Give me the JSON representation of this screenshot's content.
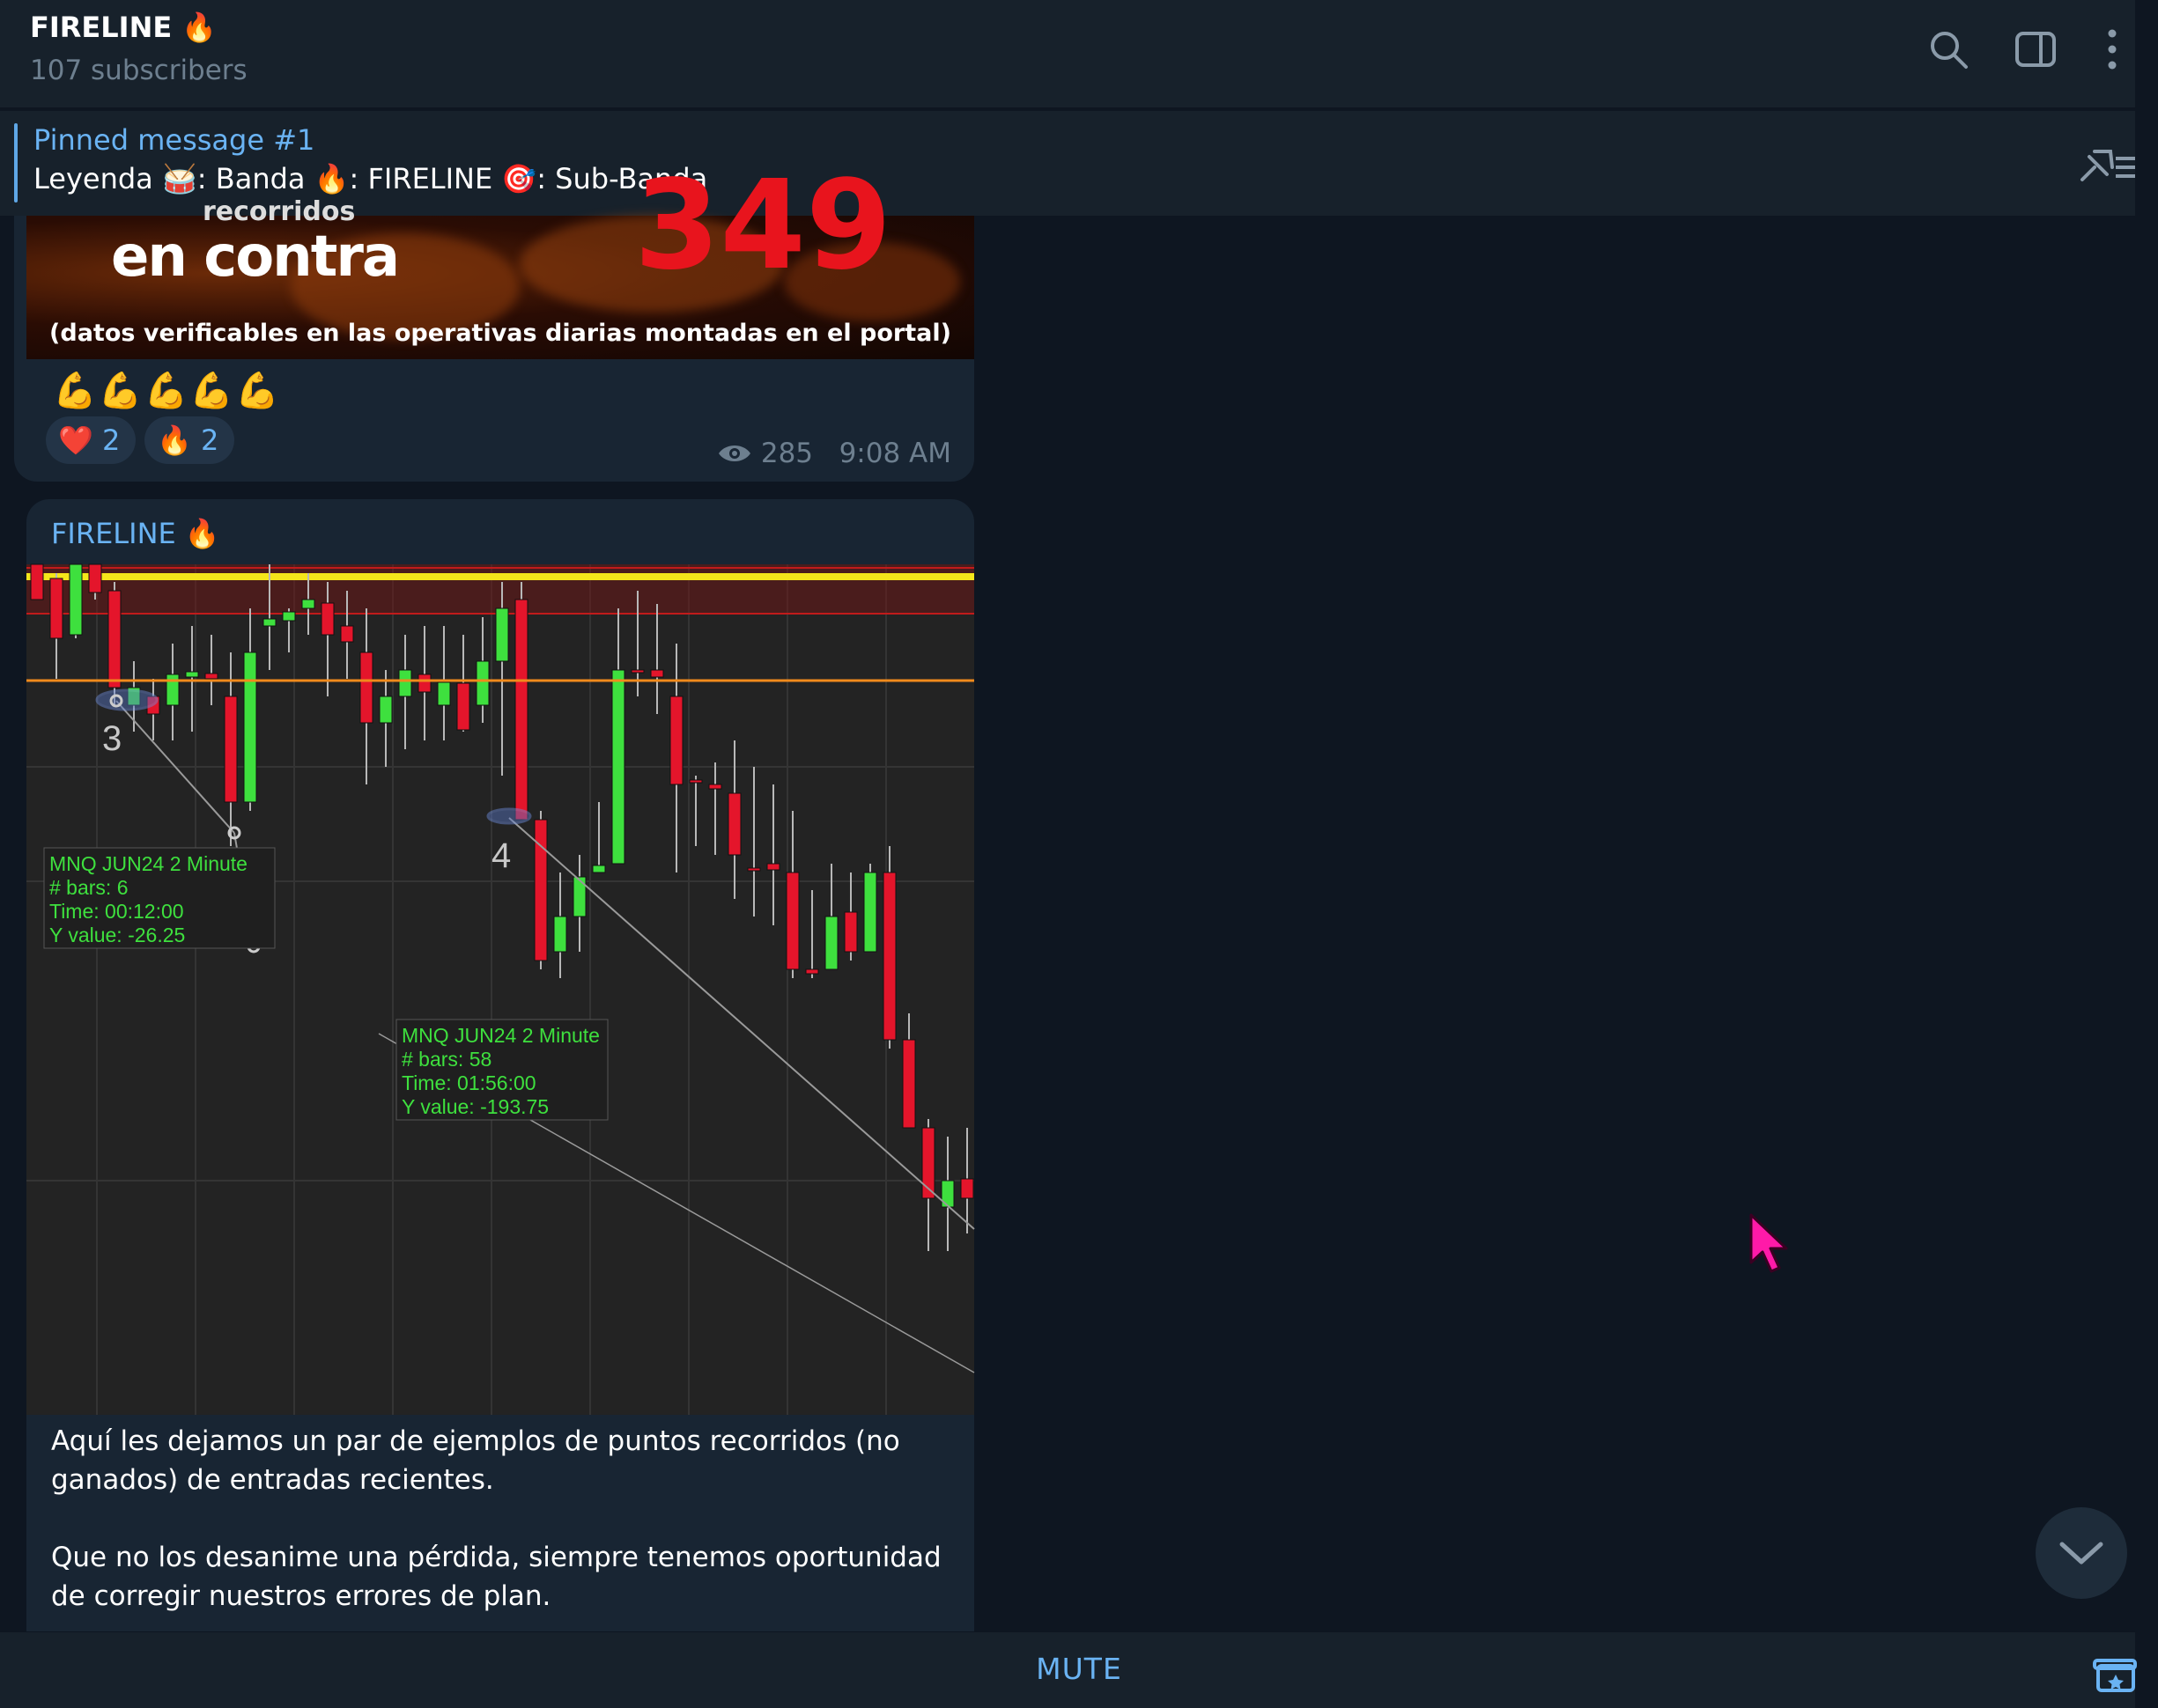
{
  "header": {
    "title": "FIRELINE 🔥",
    "subscribers": "107 subscribers",
    "icons": [
      "search-icon",
      "sidebar-toggle-icon",
      "more-vertical-icon"
    ]
  },
  "pinned": {
    "label": "Pinned message #1",
    "text": "Leyenda 🥁: Banda  🔥: FIRELINE  🎯: Sub-Banda"
  },
  "messages": [
    {
      "image_text": {
        "top": "recorridos",
        "main": "en contra",
        "big_number": "349",
        "note": "(datos verificables en las operativas diarias montadas en el portal)"
      },
      "emojis": "💪💪💪💪💪",
      "reactions": [
        {
          "emoji": "❤️",
          "count": "2"
        },
        {
          "emoji": "🔥",
          "count": "2"
        }
      ],
      "views": "285",
      "time": "9:08 AM"
    },
    {
      "sender": "FIRELINE 🔥",
      "caption": [
        "Aquí les dejamos un par de ejemplos de puntos recorridos (no ganados) de entradas recientes.",
        "Que no los desanime una pérdida, siempre tenemos oportunidad de corregir nuestros errores de plan."
      ],
      "chart_labels": {
        "marker_3": "3",
        "marker_4": "4",
        "box1": [
          "MNQ JUN24 2 Minute",
          "# bars:    6",
          "Time:      00:12:00",
          "Y value:  -26.25"
        ],
        "box2": [
          "MNQ JUN24 2 Minute",
          "# bars:    58",
          "Time:      01:56:00",
          "Y value:  -193.75"
        ]
      }
    }
  ],
  "bottom": {
    "mute_label": "MUTE"
  },
  "colors": {
    "accent": "#6ab3f3",
    "chat_bg": "#0e1621",
    "panel_bg": "#17212b",
    "bubble_bg": "#182533",
    "candle_up": "#3ee03e",
    "candle_down": "#e4152b",
    "level_yellow": "#f5e61a",
    "level_orange": "#f08a1c",
    "cursor": "#ff1aa8"
  }
}
